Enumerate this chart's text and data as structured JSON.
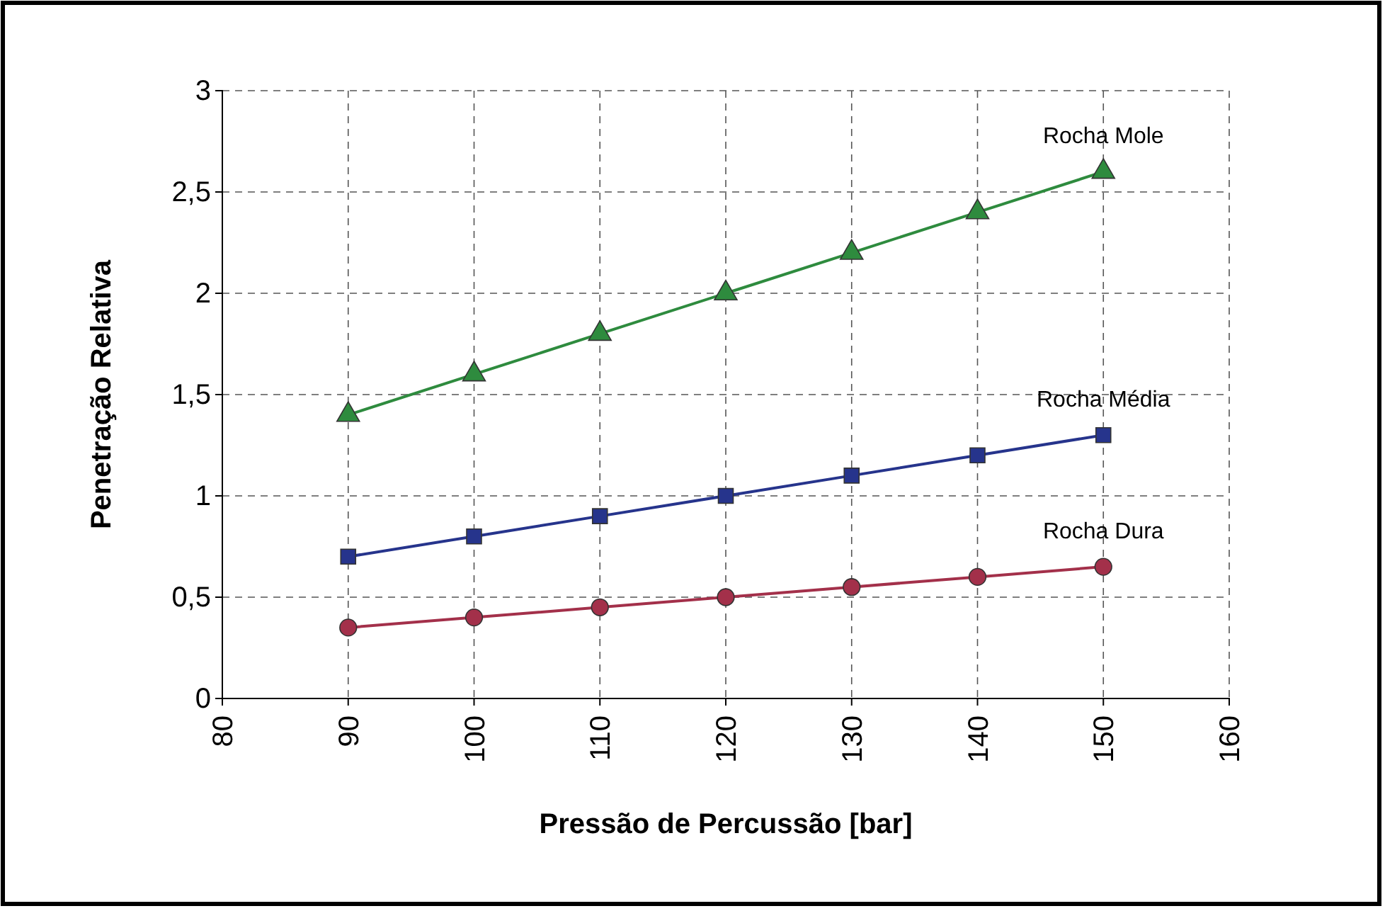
{
  "chart_data": {
    "type": "line",
    "xlabel": "Pressão de Percussão [bar]",
    "ylabel": "Penetração Relativa",
    "x": [
      90,
      100,
      110,
      120,
      130,
      140,
      150
    ],
    "series": [
      {
        "name": "Rocha Mole",
        "color": "#2e8b3e",
        "marker": "triangle",
        "values": [
          1.4,
          1.6,
          1.8,
          2.0,
          2.2,
          2.4,
          2.6
        ]
      },
      {
        "name": "Rocha Média",
        "color": "#26348c",
        "marker": "square",
        "values": [
          0.7,
          0.8,
          0.9,
          1.0,
          1.1,
          1.2,
          1.3
        ]
      },
      {
        "name": "Rocha Dura",
        "color": "#a3304a",
        "marker": "circle",
        "values": [
          0.35,
          0.4,
          0.45,
          0.5,
          0.55,
          0.6,
          0.65
        ]
      }
    ],
    "xlim": [
      80,
      160
    ],
    "xticks": [
      80,
      90,
      100,
      110,
      120,
      130,
      140,
      150,
      160
    ],
    "ylim": [
      0,
      3
    ],
    "yticks": [
      0,
      {
        "value": 0.5,
        "label": "0,5"
      },
      1,
      {
        "value": 1.5,
        "label": "1,5"
      },
      2,
      {
        "value": 2.5,
        "label": "2,5"
      },
      3
    ],
    "grid": true,
    "line_style": "solid"
  }
}
